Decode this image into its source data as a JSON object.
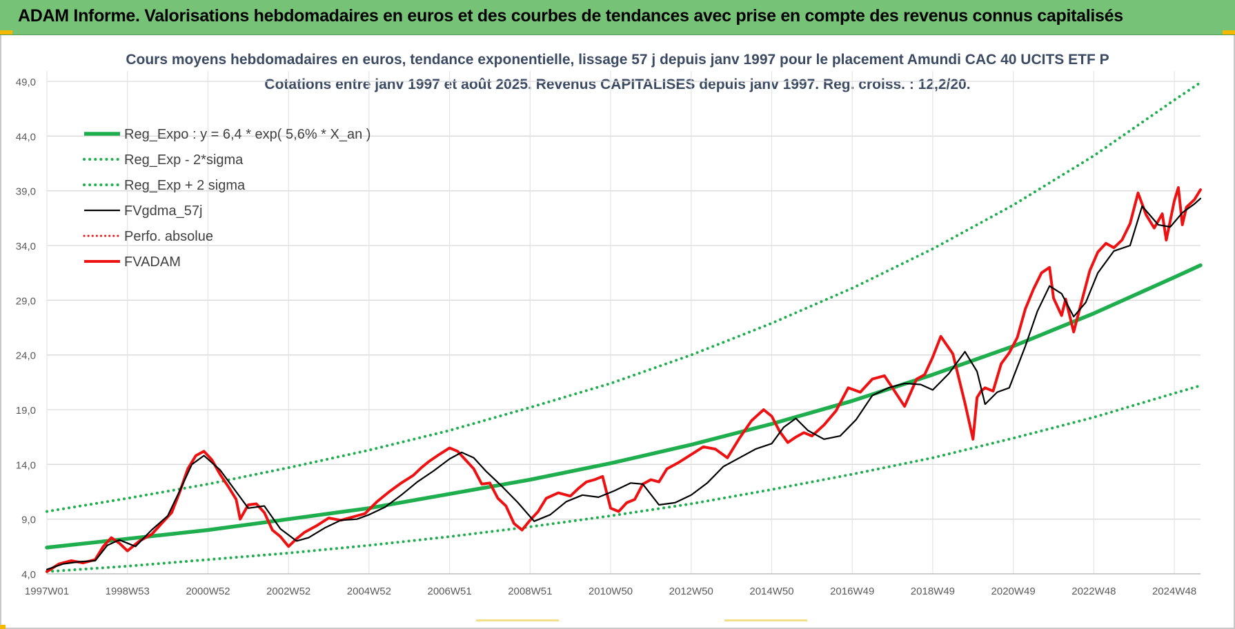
{
  "banner": {
    "title": "ADAM Informe. Valorisations hebdomadaires en euros et des courbes de tendances avec prise en compte des revenus connus capitalisés"
  },
  "colors": {
    "banner_bg": "#76c276",
    "trend_green": "#1fae4e",
    "price_red": "#ee1111",
    "smooth_black": "#000000",
    "title_text": "#3b4a63"
  },
  "chart_data": {
    "type": "line",
    "title": "Cours moyens hebdomadaires en euros, tendance exponentielle, lissage 57 j depuis janv 1997  pour le placement Amundi CAC 40 UCITS ETF P",
    "subtitle": "Cotations entre janv 1997 et août 2025.  Revenus CAPITALISES depuis janv 1997. Reg.  croiss. : 12,2/20.",
    "xlabel": "",
    "ylabel": "",
    "ylim": [
      4.0,
      49.0
    ],
    "xlim": [
      1997.0,
      2025.65
    ],
    "y_ticks": [
      "4,0",
      "9,0",
      "14,0",
      "19,0",
      "24,0",
      "29,0",
      "34,0",
      "39,0",
      "44,0",
      "49,0"
    ],
    "y_tick_values": [
      4,
      9,
      14,
      19,
      24,
      29,
      34,
      39,
      44,
      49
    ],
    "x_ticks": [
      "1997W01",
      "1998W53",
      "2000W52",
      "2002W52",
      "2004W52",
      "2006W51",
      "2008W51",
      "2010W50",
      "2012W50",
      "2014W50",
      "2016W49",
      "2018W49",
      "2020W49",
      "2022W48",
      "2024W48"
    ],
    "x_tick_values": [
      1997.0,
      1999.0,
      2001.0,
      2003.0,
      2005.0,
      2007.0,
      2009.0,
      2011.0,
      2013.0,
      2015.0,
      2017.0,
      2019.0,
      2021.0,
      2023.0,
      2025.0
    ],
    "grid": true,
    "legend_position": "top-left",
    "regression": {
      "a": 6.4,
      "rate_pct": 5.6,
      "minus_2sigma_factor": 0.66,
      "plus_2sigma_factor": 1.52
    },
    "series": [
      {
        "name": "Reg_Expo : y = 6,4 * exp( 5,6% *  X_an )",
        "style": "solid-thick",
        "color": "#1fae4e",
        "x": [
          1997.0,
          1999.0,
          2001.0,
          2003.0,
          2005.0,
          2007.0,
          2009.0,
          2011.0,
          2013.0,
          2015.0,
          2017.0,
          2019.0,
          2021.0,
          2023.0,
          2025.0,
          2025.65
        ],
        "values": [
          6.4,
          7.2,
          8.0,
          9.0,
          10.0,
          11.3,
          12.6,
          14.1,
          15.8,
          17.7,
          19.8,
          22.2,
          24.8,
          27.8,
          31.1,
          32.2
        ]
      },
      {
        "name": "Reg_Exp - 2*sigma",
        "style": "dotted",
        "color": "#1fae4e",
        "x": [
          1997.0,
          1999.0,
          2001.0,
          2003.0,
          2005.0,
          2007.0,
          2009.0,
          2011.0,
          2013.0,
          2015.0,
          2017.0,
          2019.0,
          2021.0,
          2023.0,
          2025.0,
          2025.65
        ],
        "values": [
          4.2,
          4.7,
          5.3,
          5.9,
          6.6,
          7.4,
          8.3,
          9.3,
          10.4,
          11.7,
          13.1,
          14.6,
          16.4,
          18.3,
          20.5,
          21.2
        ]
      },
      {
        "name": "Reg_Exp + 2 sigma",
        "style": "dotted",
        "color": "#1fae4e",
        "x": [
          1997.0,
          1999.0,
          2001.0,
          2003.0,
          2005.0,
          2007.0,
          2009.0,
          2011.0,
          2013.0,
          2015.0,
          2017.0,
          2019.0,
          2021.0,
          2023.0,
          2025.0,
          2025.65
        ],
        "values": [
          9.7,
          10.9,
          12.2,
          13.7,
          15.3,
          17.1,
          19.2,
          21.4,
          24.0,
          26.9,
          30.1,
          33.7,
          37.7,
          42.2,
          47.3,
          48.9
        ]
      },
      {
        "name": "FVgdma_57j",
        "style": "solid",
        "color": "#000000",
        "x": [
          1997.0,
          1997.4,
          1997.8,
          1998.2,
          1998.5,
          1998.8,
          1999.2,
          1999.6,
          2000.0,
          2000.3,
          2000.6,
          2000.9,
          2001.3,
          2001.7,
          2002.0,
          2002.4,
          2002.8,
          2003.2,
          2003.5,
          2003.9,
          2004.3,
          2004.7,
          2005.0,
          2005.4,
          2005.8,
          2006.2,
          2006.6,
          2007.0,
          2007.3,
          2007.6,
          2007.9,
          2008.3,
          2008.7,
          2009.1,
          2009.5,
          2009.9,
          2010.3,
          2010.7,
          2011.1,
          2011.5,
          2011.8,
          2012.2,
          2012.6,
          2013.0,
          2013.4,
          2013.8,
          2014.2,
          2014.6,
          2015.0,
          2015.3,
          2015.6,
          2015.9,
          2016.3,
          2016.7,
          2017.1,
          2017.5,
          2017.9,
          2018.3,
          2018.7,
          2019.0,
          2019.4,
          2019.8,
          2020.1,
          2020.3,
          2020.6,
          2020.9,
          2021.3,
          2021.6,
          2021.9,
          2022.2,
          2022.5,
          2022.8,
          2023.1,
          2023.5,
          2023.9,
          2024.2,
          2024.6,
          2024.9,
          2025.2,
          2025.5,
          2025.65
        ],
        "values": [
          4.4,
          4.9,
          5.1,
          5.2,
          6.6,
          7.1,
          6.5,
          8.0,
          9.3,
          11.6,
          14.0,
          14.8,
          13.5,
          11.5,
          10.0,
          10.2,
          8.1,
          7.0,
          7.3,
          8.2,
          8.9,
          9.0,
          9.4,
          10.1,
          11.2,
          12.4,
          13.4,
          14.5,
          15.1,
          14.6,
          13.4,
          12.0,
          10.5,
          8.8,
          9.4,
          10.6,
          11.2,
          11.0,
          11.6,
          12.3,
          12.2,
          10.3,
          10.5,
          11.2,
          12.3,
          13.8,
          14.6,
          15.4,
          15.9,
          17.4,
          18.2,
          17.1,
          16.3,
          16.6,
          18.1,
          20.3,
          21.0,
          21.4,
          21.3,
          20.8,
          22.3,
          24.3,
          22.5,
          19.5,
          20.6,
          21.0,
          24.8,
          28.0,
          30.3,
          29.6,
          27.5,
          28.8,
          31.5,
          33.5,
          34.0,
          37.6,
          35.9,
          35.7,
          37.0,
          37.8,
          38.3
        ]
      },
      {
        "name": "Perfo. absolue",
        "style": "dotted",
        "color": "#ee1111",
        "x": [],
        "values": []
      },
      {
        "name": "FVADAM",
        "style": "solid-thick",
        "color": "#ee1111",
        "x": [
          1997.0,
          1997.3,
          1997.6,
          1997.9,
          1998.2,
          1998.4,
          1998.6,
          1998.8,
          1999.0,
          1999.3,
          1999.6,
          1999.9,
          2000.1,
          2000.3,
          2000.5,
          2000.7,
          2000.9,
          2001.1,
          2001.3,
          2001.5,
          2001.7,
          2001.8,
          2002.0,
          2002.2,
          2002.4,
          2002.6,
          2002.8,
          2003.0,
          2003.2,
          2003.4,
          2003.7,
          2004.0,
          2004.3,
          2004.6,
          2004.9,
          2005.2,
          2005.5,
          2005.8,
          2006.1,
          2006.3,
          2006.5,
          2006.7,
          2007.0,
          2007.2,
          2007.4,
          2007.6,
          2007.8,
          2008.0,
          2008.2,
          2008.4,
          2008.6,
          2008.8,
          2009.0,
          2009.2,
          2009.4,
          2009.7,
          2010.0,
          2010.2,
          2010.4,
          2010.6,
          2010.8,
          2011.0,
          2011.2,
          2011.4,
          2011.6,
          2011.8,
          2012.0,
          2012.2,
          2012.4,
          2012.7,
          2013.0,
          2013.3,
          2013.6,
          2013.9,
          2014.2,
          2014.5,
          2014.8,
          2015.0,
          2015.2,
          2015.4,
          2015.6,
          2015.8,
          2016.0,
          2016.3,
          2016.6,
          2016.9,
          2017.2,
          2017.5,
          2017.8,
          2018.0,
          2018.3,
          2018.6,
          2018.8,
          2019.0,
          2019.2,
          2019.5,
          2019.8,
          2020.0,
          2020.1,
          2020.2,
          2020.3,
          2020.5,
          2020.7,
          2020.9,
          2021.1,
          2021.3,
          2021.5,
          2021.7,
          2021.9,
          2022.0,
          2022.2,
          2022.3,
          2022.5,
          2022.7,
          2022.9,
          2023.1,
          2023.3,
          2023.5,
          2023.7,
          2023.9,
          2024.1,
          2024.3,
          2024.5,
          2024.7,
          2024.8,
          2025.0,
          2025.1,
          2025.2,
          2025.3,
          2025.5,
          2025.65
        ],
        "values": [
          4.2,
          4.9,
          5.2,
          5.0,
          5.3,
          6.5,
          7.3,
          6.8,
          6.1,
          7.0,
          7.6,
          8.8,
          9.6,
          11.5,
          13.6,
          14.8,
          15.2,
          14.4,
          13.1,
          12.0,
          10.8,
          9.0,
          10.3,
          10.4,
          9.6,
          8.0,
          7.4,
          6.5,
          7.2,
          7.8,
          8.4,
          9.1,
          8.9,
          9.2,
          9.5,
          10.6,
          11.5,
          12.3,
          13.0,
          13.7,
          14.3,
          14.8,
          15.5,
          15.2,
          14.4,
          13.6,
          12.2,
          12.3,
          10.9,
          10.2,
          8.6,
          8.0,
          8.9,
          9.7,
          10.9,
          11.4,
          11.1,
          11.8,
          12.4,
          12.6,
          12.9,
          10.0,
          9.7,
          10.5,
          10.8,
          12.2,
          12.6,
          12.4,
          13.6,
          14.2,
          14.9,
          15.6,
          15.4,
          14.6,
          16.4,
          18.0,
          19.0,
          18.4,
          17.0,
          16.0,
          16.5,
          16.9,
          16.6,
          17.6,
          18.9,
          21.0,
          20.6,
          21.8,
          22.1,
          21.0,
          19.3,
          21.8,
          22.2,
          23.8,
          25.7,
          24.1,
          19.6,
          16.3,
          20.1,
          20.7,
          21.0,
          20.7,
          23.2,
          24.2,
          25.6,
          28.2,
          30.0,
          31.5,
          32.0,
          29.2,
          27.6,
          29.1,
          26.1,
          28.9,
          31.7,
          33.4,
          34.2,
          33.8,
          34.5,
          36.0,
          38.8,
          36.8,
          35.6,
          36.9,
          34.5,
          38.1,
          39.3,
          35.9,
          37.5,
          38.2,
          39.1
        ]
      }
    ]
  }
}
